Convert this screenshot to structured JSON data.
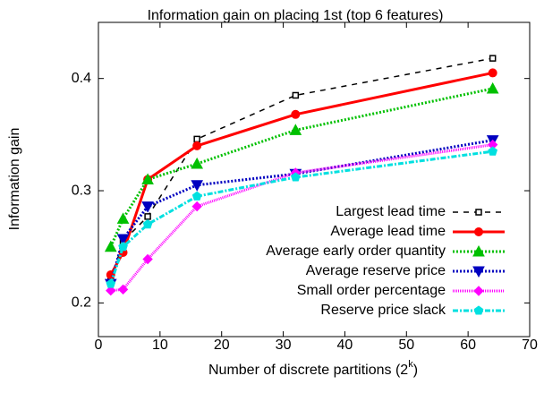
{
  "chart_data": {
    "type": "line",
    "title": "Information gain on placing 1st (top 6 features)",
    "x_label": "Number of discrete partitions (2",
    "x_label_sup": "k",
    "x_label_end": ")",
    "y_label": "Information gain",
    "x": [
      2,
      4,
      8,
      16,
      32,
      64
    ],
    "xlim": [
      0,
      70
    ],
    "xticks": [
      0,
      10,
      20,
      30,
      40,
      50,
      60,
      70
    ],
    "ylim": [
      0.17,
      0.45
    ],
    "yticks": [
      0.2,
      0.3,
      0.4
    ],
    "legend": "bottom-right",
    "series": [
      {
        "name": "Largest lead time",
        "color": "#000000",
        "marker": "square",
        "dash": "6,6",
        "width": 1.5,
        "values": [
          0.22,
          0.255,
          0.277,
          0.346,
          0.385,
          0.418
        ]
      },
      {
        "name": "Average lead time",
        "color": "#ff0000",
        "marker": "circle",
        "dash": "none",
        "width": 3,
        "values": [
          0.225,
          0.245,
          0.31,
          0.34,
          0.368,
          0.405
        ]
      },
      {
        "name": "Average early order quantity",
        "color": "#00c000",
        "marker": "triangle-up",
        "dash": "2,2",
        "width": 3,
        "values": [
          0.25,
          0.275,
          0.31,
          0.324,
          0.354,
          0.391
        ]
      },
      {
        "name": "Average reserve price",
        "color": "#0000c0",
        "marker": "triangle-down",
        "dash": "2,2",
        "width": 3,
        "values": [
          0.217,
          0.257,
          0.286,
          0.305,
          0.315,
          0.345
        ]
      },
      {
        "name": "Small order percentage",
        "color": "#ff00ff",
        "marker": "diamond",
        "dash": "1,1",
        "width": 3,
        "values": [
          0.211,
          0.212,
          0.239,
          0.286,
          0.316,
          0.341
        ]
      },
      {
        "name": "Reserve price slack",
        "color": "#00e0e0",
        "marker": "pentagon",
        "dash": "6,2,2,2",
        "width": 3,
        "values": [
          0.217,
          0.25,
          0.27,
          0.295,
          0.312,
          0.335
        ]
      }
    ]
  }
}
